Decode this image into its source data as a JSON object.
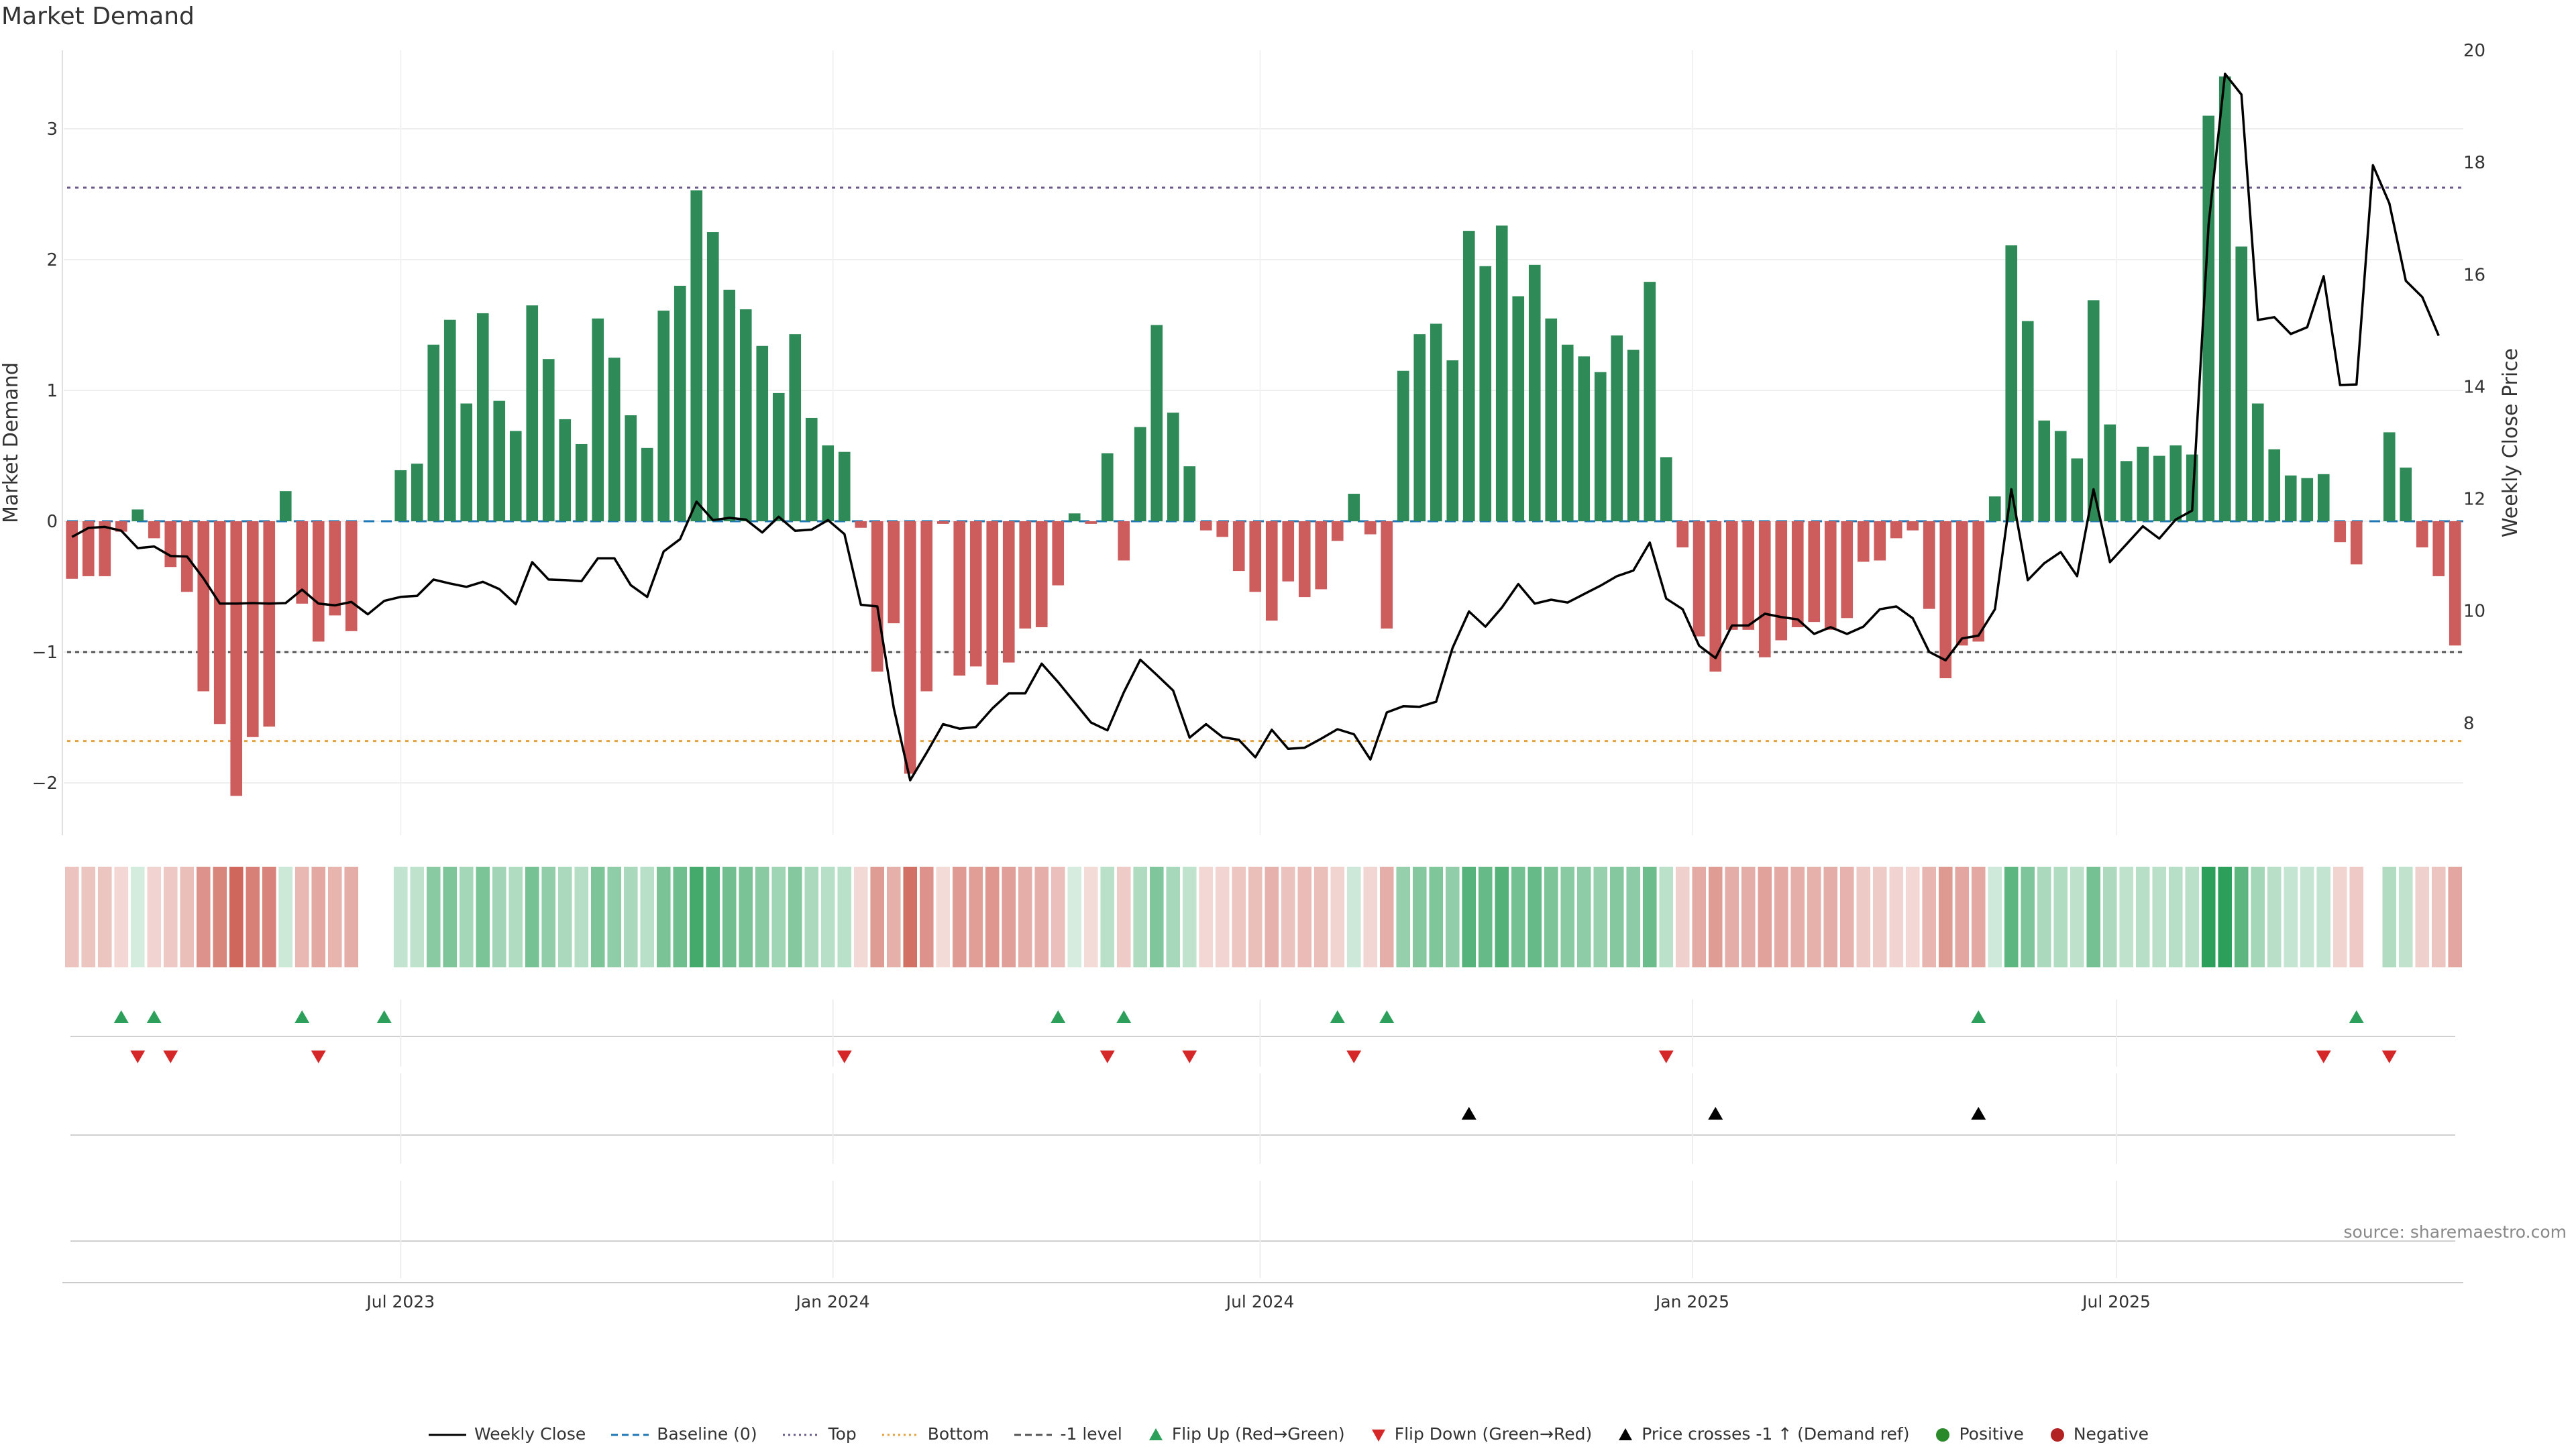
{
  "title": "Market Demand",
  "source": "source: sharemaestro.com",
  "legend": [
    {
      "key": "weekly_close",
      "label": "Weekly Close",
      "kind": "line",
      "color": "#000000"
    },
    {
      "key": "baseline",
      "label": "Baseline (0)",
      "kind": "dash",
      "color": "#1f77b4"
    },
    {
      "key": "top",
      "label": "Top",
      "kind": "dot",
      "color": "#6a5a8c"
    },
    {
      "key": "bottom",
      "label": "Bottom",
      "kind": "dot",
      "color": "#e6a040"
    },
    {
      "key": "minus1",
      "label": "-1 level",
      "kind": "dash",
      "color": "#555555"
    },
    {
      "key": "flip_up",
      "label": "Flip Up (Red→Green)",
      "kind": "tri-up",
      "color": "#2ca05a"
    },
    {
      "key": "flip_down",
      "label": "Flip Down (Green→Red)",
      "kind": "tri-down",
      "color": "#d62728"
    },
    {
      "key": "cross",
      "label": "Price crosses -1 ↑ (Demand ref)",
      "kind": "tri-up",
      "color": "#000000"
    },
    {
      "key": "positive",
      "label": "Positive",
      "kind": "circle",
      "color": "#2a8a2a"
    },
    {
      "key": "negative",
      "label": "Negative",
      "kind": "circle",
      "color": "#b22222"
    }
  ],
  "chart_data": {
    "type": "bar+line",
    "title": "Market Demand",
    "ylabel_left": "Market Demand",
    "ylabel_right": "Weekly Close Price",
    "ylim_left": [
      -2.4,
      3.6
    ],
    "ylim_right": [
      6.0,
      20.0
    ],
    "yticks_left": [
      "−2",
      "−1",
      "0",
      "1",
      "2",
      "3"
    ],
    "yticks_left_values": [
      -2,
      -1,
      0,
      1,
      2,
      3
    ],
    "yticks_right": [
      "8",
      "10",
      "12",
      "14",
      "16",
      "18",
      "20"
    ],
    "yticks_right_values": [
      8,
      10,
      12,
      14,
      16,
      18,
      20
    ],
    "x_ticks": [
      "Jul 2023",
      "Jan 2024",
      "Jul 2024",
      "Jan 2025",
      "Jul 2025"
    ],
    "x_tick_index": [
      20,
      46.3,
      72.3,
      98.6,
      124.4
    ],
    "reference_lines": {
      "top": 2.55,
      "bottom": -1.68,
      "minus1_level": -1.0,
      "baseline": 0
    },
    "demand": [
      -0.44,
      -0.42,
      -0.42,
      -0.08,
      0.09,
      -0.13,
      -0.35,
      -0.54,
      -1.3,
      -1.55,
      -2.1,
      -1.65,
      -1.57,
      0.23,
      -0.63,
      -0.92,
      -0.72,
      -0.84,
      0.0,
      0.0,
      0.39,
      0.44,
      1.35,
      1.54,
      0.9,
      1.59,
      0.92,
      0.69,
      1.65,
      1.24,
      0.78,
      0.59,
      1.55,
      1.25,
      0.81,
      0.56,
      1.61,
      1.8,
      2.53,
      2.21,
      1.77,
      1.62,
      1.34,
      0.98,
      1.43,
      0.79,
      0.58,
      0.53,
      -0.05,
      -1.15,
      -0.78,
      -1.93,
      -1.3,
      -0.02,
      -1.18,
      -1.11,
      -1.25,
      -1.08,
      -0.82,
      -0.81,
      -0.49,
      0.06,
      -0.02,
      0.52,
      -0.3,
      0.72,
      1.5,
      0.83,
      0.42,
      -0.07,
      -0.12,
      -0.38,
      -0.54,
      -0.76,
      -0.46,
      -0.58,
      -0.52,
      -0.15,
      0.21,
      -0.1,
      -0.82,
      1.15,
      1.43,
      1.51,
      1.23,
      2.22,
      1.95,
      2.26,
      1.72,
      1.96,
      1.55,
      1.35,
      1.26,
      1.14,
      1.42,
      1.31,
      1.83,
      0.49,
      -0.2,
      -0.88,
      -1.15,
      -0.83,
      -0.83,
      -1.04,
      -0.91,
      -0.81,
      -0.77,
      -0.83,
      -0.74,
      -0.31,
      -0.3,
      -0.13,
      -0.07,
      -0.67,
      -1.2,
      -0.95,
      -0.92,
      0.19,
      2.11,
      1.53,
      0.77,
      0.69,
      0.48,
      1.69,
      0.74,
      0.46,
      0.57,
      0.5,
      0.58,
      0.51,
      3.1,
      3.4,
      2.1,
      0.9,
      0.55,
      0.35,
      0.33,
      0.36,
      -0.16,
      -0.33,
      0.0,
      0.68,
      0.41,
      -0.2,
      -0.42,
      -0.95
    ],
    "weekly_close": [
      11.32,
      11.48,
      11.5,
      11.43,
      11.12,
      11.15,
      10.98,
      10.97,
      10.58,
      10.13,
      10.13,
      10.14,
      10.13,
      10.14,
      10.38,
      10.13,
      10.1,
      10.16,
      9.94,
      10.18,
      10.25,
      10.27,
      10.56,
      10.49,
      10.43,
      10.52,
      10.39,
      10.12,
      10.87,
      10.56,
      10.55,
      10.53,
      10.94,
      10.94,
      10.46,
      10.25,
      11.06,
      11.28,
      11.95,
      11.62,
      11.66,
      11.63,
      11.4,
      11.68,
      11.43,
      11.45,
      11.62,
      11.37,
      10.11,
      10.08,
      8.27,
      6.98,
      7.47,
      7.98,
      7.9,
      7.93,
      8.26,
      8.53,
      8.53,
      9.06,
      8.73,
      8.37,
      8.01,
      7.87,
      8.55,
      9.13,
      8.86,
      8.58,
      7.74,
      7.98,
      7.75,
      7.7,
      7.39,
      7.88,
      7.54,
      7.56,
      7.72,
      7.89,
      7.8,
      7.35,
      8.19,
      8.3,
      8.29,
      8.38,
      9.34,
      9.99,
      9.72,
      10.06,
      10.48,
      10.13,
      10.2,
      10.15,
      10.3,
      10.45,
      10.62,
      10.72,
      11.22,
      10.22,
      10.03,
      9.38,
      9.16,
      9.74,
      9.74,
      9.95,
      9.89,
      9.85,
      9.59,
      9.71,
      9.59,
      9.72,
      10.03,
      10.08,
      9.87,
      9.27,
      9.12,
      9.51,
      9.56,
      10.03,
      12.17,
      10.55,
      10.85,
      11.05,
      10.62,
      12.17,
      10.87,
      11.19,
      11.51,
      11.29,
      11.63,
      11.79,
      16.89,
      19.58,
      19.21,
      15.19,
      15.24,
      14.94,
      15.06,
      15.97,
      14.03,
      14.04,
      17.95,
      17.27,
      15.89,
      15.6,
      14.91
    ],
    "heat_strip": {
      "label": "demand intensity (green positive / red negative)"
    },
    "flip_up_index": [
      3,
      5,
      14,
      19,
      60,
      64,
      77,
      80,
      116,
      139
    ],
    "flip_down_index": [
      4,
      6,
      15,
      47,
      63,
      68,
      78,
      97,
      137,
      141
    ],
    "price_cross_index": [
      85,
      100,
      116
    ]
  }
}
